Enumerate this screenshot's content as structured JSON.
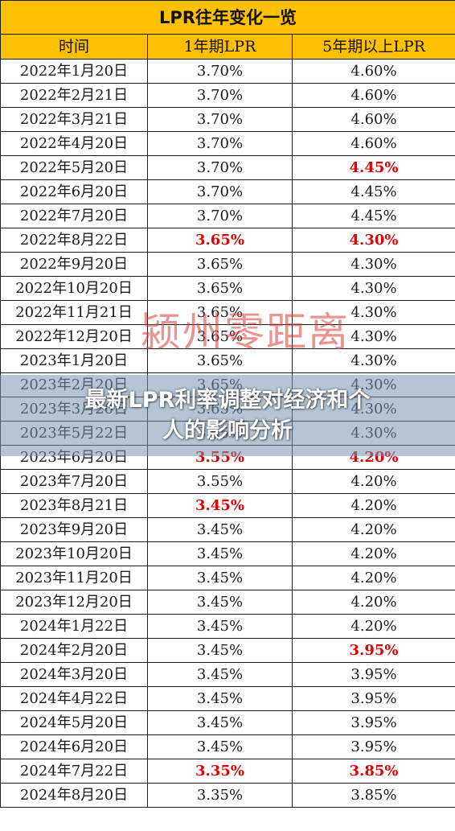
{
  "table": {
    "title": "LPR往年变化一览",
    "headers": [
      "时间",
      "1年期LPR",
      "5年期以上LPR"
    ],
    "rows": [
      {
        "date": "2022年1月20日",
        "lpr1y": "3.70%",
        "lpr5y": "4.60%",
        "lpr1y_changed": false,
        "lpr5y_changed": false
      },
      {
        "date": "2022年2月21日",
        "lpr1y": "3.70%",
        "lpr5y": "4.60%",
        "lpr1y_changed": false,
        "lpr5y_changed": false
      },
      {
        "date": "2022年3月21日",
        "lpr1y": "3.70%",
        "lpr5y": "4.60%",
        "lpr1y_changed": false,
        "lpr5y_changed": false
      },
      {
        "date": "2022年4月20日",
        "lpr1y": "3.70%",
        "lpr5y": "4.60%",
        "lpr1y_changed": false,
        "lpr5y_changed": false
      },
      {
        "date": "2022年5月20日",
        "lpr1y": "3.70%",
        "lpr5y": "4.45%",
        "lpr1y_changed": false,
        "lpr5y_changed": true
      },
      {
        "date": "2022年6月20日",
        "lpr1y": "3.70%",
        "lpr5y": "4.45%",
        "lpr1y_changed": false,
        "lpr5y_changed": false
      },
      {
        "date": "2022年7月20日",
        "lpr1y": "3.70%",
        "lpr5y": "4.45%",
        "lpr1y_changed": false,
        "lpr5y_changed": false
      },
      {
        "date": "2022年8月22日",
        "lpr1y": "3.65%",
        "lpr5y": "4.30%",
        "lpr1y_changed": true,
        "lpr5y_changed": true
      },
      {
        "date": "2022年9月20日",
        "lpr1y": "3.65%",
        "lpr5y": "4.30%",
        "lpr1y_changed": false,
        "lpr5y_changed": false
      },
      {
        "date": "2022年10月20日",
        "lpr1y": "3.65%",
        "lpr5y": "4.30%",
        "lpr1y_changed": false,
        "lpr5y_changed": false
      },
      {
        "date": "2022年11月21日",
        "lpr1y": "3.65%",
        "lpr5y": "4.30%",
        "lpr1y_changed": false,
        "lpr5y_changed": false
      },
      {
        "date": "2022年12月20日",
        "lpr1y": "3.65%",
        "lpr5y": "4.30%",
        "lpr1y_changed": false,
        "lpr5y_changed": false
      },
      {
        "date": "2023年1月20日",
        "lpr1y": "3.65%",
        "lpr5y": "4.30%",
        "lpr1y_changed": false,
        "lpr5y_changed": false
      },
      {
        "date": "2023年2月20日",
        "lpr1y": "3.65%",
        "lpr5y": "4.30%",
        "lpr1y_changed": false,
        "lpr5y_changed": false
      },
      {
        "date": "2023年3月20日",
        "lpr1y": "3.65%",
        "lpr5y": "4.30%",
        "lpr1y_changed": false,
        "lpr5y_changed": false
      },
      {
        "date": "2023年5月22日",
        "lpr1y": "3.65%",
        "lpr5y": "4.30%",
        "lpr1y_changed": false,
        "lpr5y_changed": false
      },
      {
        "date": "2023年6月20日",
        "lpr1y": "3.55%",
        "lpr5y": "4.20%",
        "lpr1y_changed": true,
        "lpr5y_changed": true
      },
      {
        "date": "2023年7月20日",
        "lpr1y": "3.55%",
        "lpr5y": "4.20%",
        "lpr1y_changed": false,
        "lpr5y_changed": false
      },
      {
        "date": "2023年8月21日",
        "lpr1y": "3.45%",
        "lpr5y": "4.20%",
        "lpr1y_changed": true,
        "lpr5y_changed": false
      },
      {
        "date": "2023年9月20日",
        "lpr1y": "3.45%",
        "lpr5y": "4.20%",
        "lpr1y_changed": false,
        "lpr5y_changed": false
      },
      {
        "date": "2023年10月20日",
        "lpr1y": "3.45%",
        "lpr5y": "4.20%",
        "lpr1y_changed": false,
        "lpr5y_changed": false
      },
      {
        "date": "2023年11月20日",
        "lpr1y": "3.45%",
        "lpr5y": "4.20%",
        "lpr1y_changed": false,
        "lpr5y_changed": false
      },
      {
        "date": "2023年12月20日",
        "lpr1y": "3.45%",
        "lpr5y": "4.20%",
        "lpr1y_changed": false,
        "lpr5y_changed": false
      },
      {
        "date": "2024年1月22日",
        "lpr1y": "3.45%",
        "lpr5y": "4.20%",
        "lpr1y_changed": false,
        "lpr5y_changed": false
      },
      {
        "date": "2024年2月20日",
        "lpr1y": "3.45%",
        "lpr5y": "3.95%",
        "lpr1y_changed": false,
        "lpr5y_changed": true
      },
      {
        "date": "2024年3月20日",
        "lpr1y": "3.45%",
        "lpr5y": "3.95%",
        "lpr1y_changed": false,
        "lpr5y_changed": false
      },
      {
        "date": "2024年4月22日",
        "lpr1y": "3.45%",
        "lpr5y": "3.95%",
        "lpr1y_changed": false,
        "lpr5y_changed": false
      },
      {
        "date": "2024年5月20日",
        "lpr1y": "3.45%",
        "lpr5y": "3.95%",
        "lpr1y_changed": false,
        "lpr5y_changed": false
      },
      {
        "date": "2024年6月20日",
        "lpr1y": "3.45%",
        "lpr5y": "3.95%",
        "lpr1y_changed": false,
        "lpr5y_changed": false
      },
      {
        "date": "2024年7月22日",
        "lpr1y": "3.35%",
        "lpr5y": "3.85%",
        "lpr1y_changed": true,
        "lpr5y_changed": true
      },
      {
        "date": "2024年8月20日",
        "lpr1y": "3.35%",
        "lpr5y": "3.85%",
        "lpr1y_changed": false,
        "lpr5y_changed": false
      }
    ]
  },
  "watermark": "颍州零距离",
  "banner": {
    "line1": "最新LPR利率调整对经济和个",
    "line2": "人的影响分析"
  },
  "colors": {
    "header_bg": "#ffc000",
    "changed_value": "#e00000",
    "banner_overlay": "#7896b2"
  }
}
